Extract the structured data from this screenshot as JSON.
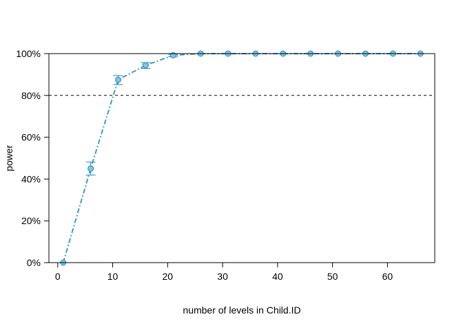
{
  "chart_data": {
    "type": "line",
    "title": "",
    "xlabel": "number of levels in Child.ID",
    "ylabel": "power",
    "xlim": [
      -1.6,
      68.6
    ],
    "ylim": [
      0,
      1
    ],
    "x_ticks": [
      0,
      10,
      20,
      30,
      40,
      50,
      60
    ],
    "x_tick_labels": [
      "0",
      "10",
      "20",
      "30",
      "40",
      "50",
      "60"
    ],
    "y_ticks": [
      0,
      0.2,
      0.4,
      0.6,
      0.8,
      1.0
    ],
    "y_tick_labels": [
      "0%",
      "20%",
      "40%",
      "60%",
      "80%",
      "100%"
    ],
    "reference_line": {
      "y": 0.8,
      "style": "dashed",
      "color": "#000000"
    },
    "grid": false,
    "series": [
      {
        "x": [
          1,
          6,
          11,
          16,
          21,
          26,
          31,
          36,
          41,
          46,
          51,
          56,
          61,
          66
        ],
        "y": [
          0.0,
          0.45,
          0.875,
          0.944,
          0.992,
          1.0,
          1.0,
          1.0,
          1.0,
          1.0,
          1.0,
          1.0,
          1.0,
          1.0
        ],
        "lower": [
          0.0,
          0.419,
          0.852,
          0.929,
          0.985,
          1.0,
          1.0,
          1.0,
          1.0,
          1.0,
          1.0,
          1.0,
          1.0,
          1.0
        ],
        "upper": [
          0.0,
          0.481,
          0.895,
          0.957,
          0.996,
          1.0,
          1.0,
          1.0,
          1.0,
          1.0,
          1.0,
          1.0,
          1.0,
          1.0
        ],
        "line_color": "#3d9ac9",
        "point_fill": "#7dc6e8",
        "point_stroke": "#2f86b3"
      }
    ]
  }
}
